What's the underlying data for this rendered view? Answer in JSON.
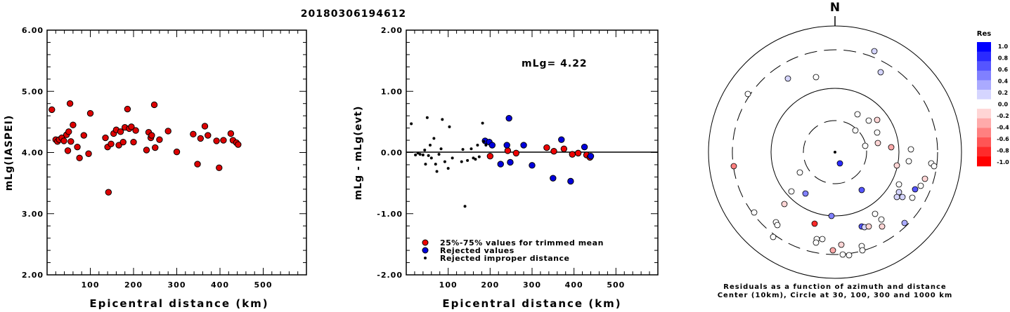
{
  "title": "20180306194612",
  "chart_data": [
    {
      "type": "scatter",
      "xlabel": "Epicentral distance (km)",
      "ylabel": "mLg(IASPEI)",
      "xlim": [
        0,
        600
      ],
      "ylim": [
        2.0,
        6.0
      ],
      "x_ticks": [
        "100",
        "200",
        "300",
        "400",
        "500"
      ],
      "y_ticks": [
        "2.00",
        "3.00",
        "4.00",
        "5.00",
        "6.00"
      ],
      "grid": false,
      "points": [
        [
          11,
          4.7
        ],
        [
          20,
          4.21
        ],
        [
          24,
          4.18
        ],
        [
          28,
          4.21
        ],
        [
          34,
          4.24
        ],
        [
          39,
          4.19
        ],
        [
          45,
          4.29
        ],
        [
          48,
          4.03
        ],
        [
          50,
          4.34
        ],
        [
          53,
          4.8
        ],
        [
          55,
          4.18
        ],
        [
          60,
          4.45
        ],
        [
          70,
          4.09
        ],
        [
          75,
          3.91
        ],
        [
          85,
          4.28
        ],
        [
          96,
          3.98
        ],
        [
          100,
          4.64
        ],
        [
          135,
          4.24
        ],
        [
          140,
          4.09
        ],
        [
          142,
          3.35
        ],
        [
          148,
          4.14
        ],
        [
          154,
          4.31
        ],
        [
          160,
          4.37
        ],
        [
          166,
          4.12
        ],
        [
          170,
          4.34
        ],
        [
          176,
          4.17
        ],
        [
          180,
          4.41
        ],
        [
          186,
          4.71
        ],
        [
          190,
          4.39
        ],
        [
          195,
          4.42
        ],
        [
          200,
          4.17
        ],
        [
          205,
          4.36
        ],
        [
          230,
          4.04
        ],
        [
          235,
          4.33
        ],
        [
          240,
          4.24
        ],
        [
          242,
          4.28
        ],
        [
          248,
          4.78
        ],
        [
          250,
          4.08
        ],
        [
          260,
          4.21
        ],
        [
          280,
          4.35
        ],
        [
          300,
          4.01
        ],
        [
          338,
          4.3
        ],
        [
          348,
          3.81
        ],
        [
          355,
          4.23
        ],
        [
          365,
          4.43
        ],
        [
          372,
          4.28
        ],
        [
          392,
          4.19
        ],
        [
          398,
          3.75
        ],
        [
          408,
          4.2
        ],
        [
          425,
          4.31
        ],
        [
          430,
          4.2
        ],
        [
          438,
          4.16
        ],
        [
          442,
          4.13
        ]
      ]
    },
    {
      "type": "scatter",
      "xlabel": "Epicentral distance (km)",
      "ylabel": "mLg - mLg(evt)",
      "xlim": [
        0,
        600
      ],
      "ylim": [
        -2.0,
        2.0
      ],
      "x_ticks": [
        "100",
        "200",
        "300",
        "400",
        "500"
      ],
      "y_ticks": [
        "-2.00",
        "-1.00",
        "0.00",
        "1.00",
        "2.00"
      ],
      "reference_line": 0.0,
      "annotation": "mLg= 4.22",
      "legend": {
        "placement": "bottom-left",
        "entries": [
          {
            "label": "25%-75% values for trimmed mean",
            "color": "#ee0000"
          },
          {
            "label": "Rejected values",
            "color": "#0000dd"
          },
          {
            "label": "Rejected improper distance",
            "color": "#000000"
          }
        ]
      },
      "series": [
        {
          "name": "25%-75% values for trimmed mean",
          "color": "#ee0000",
          "points": [
            [
              200,
              -0.06
            ],
            [
              242,
              0.03
            ],
            [
              262,
              -0.01
            ],
            [
              335,
              0.08
            ],
            [
              352,
              0.02
            ],
            [
              376,
              0.06
            ],
            [
              396,
              -0.03
            ],
            [
              410,
              -0.01
            ],
            [
              430,
              -0.04
            ],
            [
              438,
              -0.08
            ]
          ]
        },
        {
          "name": "Rejected values",
          "color": "#0000dd",
          "points": [
            [
              188,
              0.19
            ],
            [
              198,
              0.17
            ],
            [
              205,
              0.12
            ],
            [
              225,
              -0.19
            ],
            [
              240,
              0.12
            ],
            [
              245,
              0.56
            ],
            [
              248,
              -0.16
            ],
            [
              280,
              0.12
            ],
            [
              300,
              -0.21
            ],
            [
              350,
              -0.42
            ],
            [
              370,
              0.21
            ],
            [
              392,
              -0.47
            ],
            [
              425,
              0.09
            ],
            [
              440,
              -0.06
            ]
          ]
        },
        {
          "name": "Rejected improper distance",
          "color": "#000000",
          "points": [
            [
              12,
              0.47
            ],
            [
              22,
              -0.04
            ],
            [
              28,
              -0.01
            ],
            [
              33,
              -0.03
            ],
            [
              40,
              -0.04
            ],
            [
              44,
              0.04
            ],
            [
              46,
              -0.19
            ],
            [
              50,
              0.57
            ],
            [
              53,
              -0.05
            ],
            [
              57,
              0.12
            ],
            [
              60,
              -0.09
            ],
            [
              66,
              0.23
            ],
            [
              70,
              -0.19
            ],
            [
              73,
              -0.31
            ],
            [
              78,
              -0.03
            ],
            [
              83,
              0.06
            ],
            [
              86,
              0.54
            ],
            [
              92,
              -0.15
            ],
            [
              100,
              -0.26
            ],
            [
              103,
              0.42
            ],
            [
              110,
              -0.09
            ],
            [
              132,
              -0.15
            ],
            [
              135,
              0.05
            ],
            [
              140,
              -0.88
            ],
            [
              146,
              -0.13
            ],
            [
              155,
              0.06
            ],
            [
              160,
              -0.09
            ],
            [
              165,
              -0.11
            ],
            [
              170,
              0.12
            ],
            [
              174,
              -0.07
            ],
            [
              182,
              0.48
            ],
            [
              185,
              0.18
            ],
            [
              190,
              0.12
            ]
          ]
        }
      ]
    },
    {
      "type": "scatter",
      "subtype": "polar",
      "north_label": "N",
      "caption_line1": "Residuals as a function of azimuth and distance",
      "caption_line2": "Center (10km), Circle at 30, 100, 300 and 1000 km",
      "colorbar": {
        "title": "Res",
        "ticks": [
          "1.0",
          "0.8",
          "0.6",
          "0.4",
          "0.2",
          "0.0",
          "-0.2",
          "-0.4",
          "-0.6",
          "-0.8",
          "-1.0"
        ],
        "range": [
          -1.0,
          1.0
        ],
        "colors": [
          "#0000ff",
          "#2a2aff",
          "#5555ff",
          "#8080ff",
          "#aaaaff",
          "#d5d5ff",
          "#ffffff",
          "#ffd5d5",
          "#ffaaaa",
          "#ff8080",
          "#ff5555",
          "#ff2a2a",
          "#ff0000"
        ]
      },
      "points": [
        {
          "az": "N",
          "x": 1188,
          "y": 217,
          "res": null
        },
        {
          "x": 1195,
          "y": 233,
          "res": 0.8
        },
        {
          "x": 1244,
          "y": 73,
          "res": 0.15
        },
        {
          "x": 1253,
          "y": 103,
          "res": 0.25
        },
        {
          "x": 1161,
          "y": 110,
          "res": 0.0
        },
        {
          "x": 1121,
          "y": 112,
          "res": 0.1
        },
        {
          "x": 1064,
          "y": 134,
          "res": 0.0
        },
        {
          "x": 1220,
          "y": 163,
          "res": 0.05
        },
        {
          "x": 1236,
          "y": 172,
          "res": 0.05
        },
        {
          "x": 1248,
          "y": 171,
          "res": -0.1
        },
        {
          "x": 1217,
          "y": 186,
          "res": 0.0
        },
        {
          "x": 1248,
          "y": 189,
          "res": 0.05
        },
        {
          "x": 1231,
          "y": 208,
          "res": 0.0
        },
        {
          "x": 1249,
          "y": 204,
          "res": -0.2
        },
        {
          "x": 1268,
          "y": 210,
          "res": -0.25
        },
        {
          "x": 1296,
          "y": 213,
          "res": 0.0
        },
        {
          "x": 1044,
          "y": 237,
          "res": -0.5
        },
        {
          "x": 1138,
          "y": 246,
          "res": 0.0
        },
        {
          "x": 1276,
          "y": 236,
          "res": -0.1
        },
        {
          "x": 1293,
          "y": 230,
          "res": 0.0
        },
        {
          "x": 1325,
          "y": 233,
          "res": 0.0
        },
        {
          "x": 1329,
          "y": 237,
          "res": 0.0
        },
        {
          "x": 1316,
          "y": 255,
          "res": -0.15
        },
        {
          "x": 1279,
          "y": 263,
          "res": 0.0
        },
        {
          "x": 1310,
          "y": 265,
          "res": 0.0
        },
        {
          "x": 1302,
          "y": 270,
          "res": 0.6
        },
        {
          "x": 1226,
          "y": 271,
          "res": 0.7
        },
        {
          "x": 1146,
          "y": 276,
          "res": 0.5
        },
        {
          "x": 1126,
          "y": 273,
          "res": 0.0
        },
        {
          "x": 1279,
          "y": 274,
          "res": 0.15
        },
        {
          "x": 1276,
          "y": 281,
          "res": 0.1
        },
        {
          "x": 1284,
          "y": 281,
          "res": 0.1
        },
        {
          "x": 1298,
          "y": 282,
          "res": 0.0
        },
        {
          "x": 1116,
          "y": 291,
          "res": -0.15
        },
        {
          "x": 1073,
          "y": 303,
          "res": 0.0
        },
        {
          "x": 1183,
          "y": 308,
          "res": 0.5
        },
        {
          "x": 1245,
          "y": 305,
          "res": 0.0
        },
        {
          "x": 1254,
          "y": 313,
          "res": -0.05
        },
        {
          "x": 1287,
          "y": 318,
          "res": 0.3
        },
        {
          "x": 1104,
          "y": 317,
          "res": 0.0
        },
        {
          "x": 1106,
          "y": 321,
          "res": 0.0
        },
        {
          "x": 1159,
          "y": 319,
          "res": -0.9
        },
        {
          "x": 1226,
          "y": 323,
          "res": 0.6
        },
        {
          "x": 1230,
          "y": 324,
          "res": 0.1
        },
        {
          "x": 1236,
          "y": 323,
          "res": -0.1
        },
        {
          "x": 1255,
          "y": 323,
          "res": -0.1
        },
        {
          "x": 1100,
          "y": 338,
          "res": 0.0
        },
        {
          "x": 1162,
          "y": 341,
          "res": 0.0
        },
        {
          "x": 1170,
          "y": 341,
          "res": 0.0
        },
        {
          "x": 1226,
          "y": 351,
          "res": 0.0
        },
        {
          "x": 1161,
          "y": 346,
          "res": 0.0
        },
        {
          "x": 1197,
          "y": 349,
          "res": -0.2
        },
        {
          "x": 1185,
          "y": 357,
          "res": -0.4
        },
        {
          "x": 1227,
          "y": 357,
          "res": 0.0
        },
        {
          "x": 1199,
          "y": 363,
          "res": 0.0
        },
        {
          "x": 1208,
          "y": 364,
          "res": 0.0
        }
      ]
    }
  ]
}
